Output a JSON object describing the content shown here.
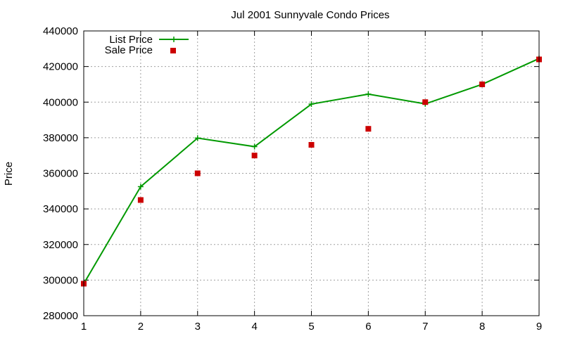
{
  "chart_data": {
    "type": "line",
    "title": "Jul 2001 Sunnyvale Condo Prices",
    "xlabel": "",
    "ylabel": "Price",
    "xlim": [
      1,
      9
    ],
    "ylim": [
      280000,
      440000
    ],
    "xticks": [
      "1",
      "2",
      "3",
      "4",
      "5",
      "6",
      "7",
      "8",
      "9"
    ],
    "yticks": [
      "280000",
      "300000",
      "320000",
      "340000",
      "360000",
      "380000",
      "400000",
      "420000",
      "440000"
    ],
    "grid": true,
    "legend_position": "top-left",
    "series": [
      {
        "name": "List Price",
        "style": "line+plus",
        "color": "#009900",
        "x": [
          1,
          2,
          3,
          4,
          5,
          6,
          7,
          8,
          9
        ],
        "y": [
          298000,
          352500,
          379800,
          375000,
          398900,
          404500,
          399000,
          410000,
          424500
        ]
      },
      {
        "name": "Sale Price",
        "style": "square-markers",
        "color": "#cc0000",
        "x": [
          1,
          2,
          3,
          4,
          5,
          6,
          7,
          8,
          9
        ],
        "y": [
          298000,
          345000,
          360000,
          370000,
          376000,
          385000,
          400000,
          410000,
          424000
        ]
      }
    ]
  }
}
